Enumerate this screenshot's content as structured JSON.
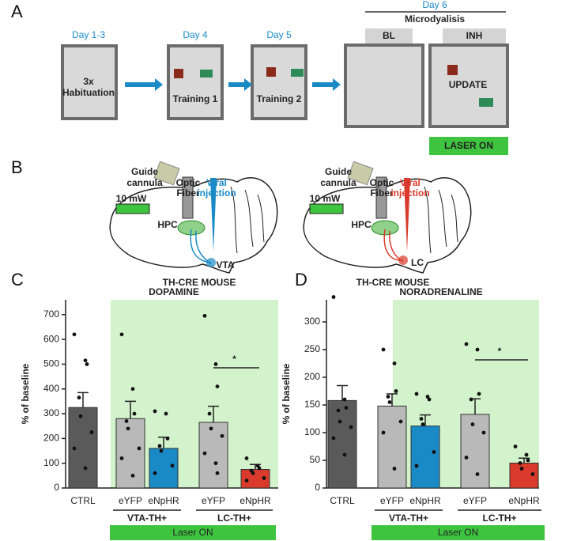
{
  "panel_a": {
    "label": "A",
    "days": [
      "Day 1-3",
      "Day 4",
      "Day 5",
      "Day 6"
    ],
    "session": "Microdyalisis",
    "phases": [
      "BL",
      "INH"
    ],
    "boxes": [
      [
        "3x",
        "Habituation"
      ],
      [
        "Training 1"
      ],
      [
        "Training 2"
      ],
      [
        "UPDATE"
      ]
    ],
    "laser": "LASER ON"
  },
  "panel_b": {
    "label": "B",
    "mice": [
      {
        "guide": [
          "Guide",
          "cannula"
        ],
        "fiber": [
          "Optic",
          "Fiber"
        ],
        "injection": [
          "Viral",
          "injection"
        ],
        "power": "10 mW",
        "hpc": "HPC",
        "target": "VTA",
        "strain": "TH-CRE MOUSE"
      },
      {
        "guide": [
          "Guide",
          "cannula"
        ],
        "fiber": [
          "Optic",
          "Fiber"
        ],
        "injection": [
          "Viral",
          "injection"
        ],
        "power": "10 mW",
        "hpc": "HPC",
        "target": "LC",
        "strain": "TH-CRE MOUSE"
      }
    ]
  },
  "chart_data": [
    {
      "type": "bar",
      "label": "C",
      "title": "DOPAMINE",
      "y_label": "% of baseline",
      "categories": [
        "CTRL",
        "eYFP",
        "eNpHR",
        "eYFP",
        "eNpHR"
      ],
      "values": [
        325,
        280,
        160,
        265,
        75
      ],
      "errors": [
        60,
        70,
        45,
        65,
        20
      ],
      "points": [
        [
          620,
          515,
          500,
          365,
          290,
          225,
          160,
          80
        ],
        [
          620,
          400,
          300,
          270,
          240,
          160,
          120,
          50
        ],
        [
          310,
          300,
          200,
          170,
          150,
          90,
          60
        ],
        [
          695,
          500,
          410,
          300,
          240,
          210,
          140,
          100,
          60
        ],
        [
          120,
          90,
          80,
          70,
          60,
          40,
          30
        ]
      ],
      "colors": [
        "#5a5a5a",
        "#b9b9b9",
        "#1a8ac6",
        "#b9b9b9",
        "#d93a2b"
      ],
      "ylim": [
        0,
        760
      ],
      "yticks": [
        0,
        100,
        200,
        300,
        400,
        500,
        600,
        700
      ],
      "groups": [
        {
          "label": "VTA-TH+",
          "color": "#1a8ac6"
        },
        {
          "label": "LC-TH+",
          "color": "#d93a2b"
        }
      ],
      "shade_label": "Laser ON",
      "shade_color": "#d3f3cc",
      "annotation": "*"
    },
    {
      "type": "bar",
      "label": "D",
      "title": "NORADRENALINE",
      "y_label": "% of baseline",
      "categories": [
        "CTRL",
        "eYFP",
        "eNpHR",
        "eYFP",
        "eNpHR"
      ],
      "values": [
        158,
        148,
        112,
        133,
        45
      ],
      "errors": [
        27,
        22,
        20,
        28,
        9
      ],
      "points": [
        [
          345,
          160,
          145,
          140,
          120,
          110,
          90,
          60
        ],
        [
          250,
          225,
          175,
          165,
          155,
          120,
          100,
          35
        ],
        [
          170,
          165,
          160,
          125,
          115,
          65,
          40
        ],
        [
          260,
          250,
          170,
          160,
          115,
          100,
          55,
          25
        ],
        [
          75,
          60,
          50,
          45,
          35,
          25
        ]
      ],
      "colors": [
        "#5a5a5a",
        "#b9b9b9",
        "#1a8ac6",
        "#b9b9b9",
        "#d93a2b"
      ],
      "ylim": [
        0,
        340
      ],
      "yticks": [
        0,
        50,
        100,
        150,
        200,
        250,
        300
      ],
      "groups": [
        {
          "label": "VTA-TH+",
          "color": "#1a8ac6"
        },
        {
          "label": "LC-TH+",
          "color": "#d93a2b"
        }
      ],
      "shade_label": "Laser ON",
      "shade_color": "#d3f3cc",
      "annotation": "*"
    }
  ]
}
